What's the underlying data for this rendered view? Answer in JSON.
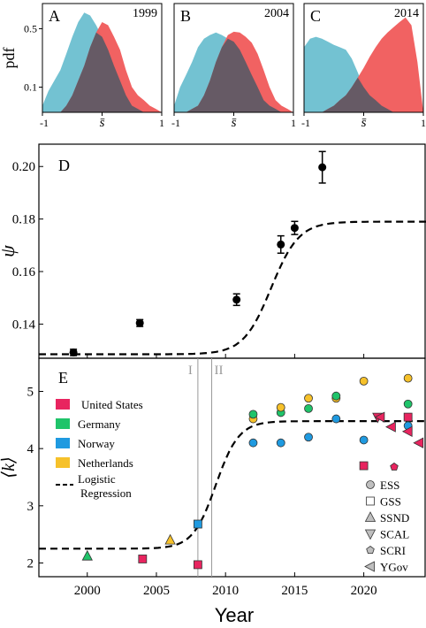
{
  "chart_data": [
    {
      "panel": "A",
      "type": "area",
      "year_label": "1999",
      "ylabel": "pdf",
      "yscale": "log",
      "ytick_labels": [
        "0.5",
        "0.1"
      ],
      "ytick_values": [
        0.5,
        0.1
      ],
      "xtick_labels": [
        "-1",
        "s̄",
        "1"
      ],
      "xtick_values": [
        -1,
        0,
        1
      ],
      "xlim": [
        -1,
        1
      ],
      "ylim": [
        0.05,
        1.0
      ],
      "series": [
        {
          "color": "#6cbfd0",
          "x": [
            -1,
            -0.9,
            -0.8,
            -0.7,
            -0.6,
            -0.5,
            -0.4,
            -0.3,
            -0.2,
            -0.1,
            0.0,
            0.1,
            0.2,
            0.3,
            0.4,
            0.5,
            0.6,
            0.7,
            0.8,
            0.9,
            1.0
          ],
          "y": [
            0.06,
            0.09,
            0.12,
            0.16,
            0.25,
            0.4,
            0.6,
            0.78,
            0.72,
            0.55,
            0.4,
            0.28,
            0.18,
            0.12,
            0.08,
            0.06,
            0.055,
            0.05,
            0.05,
            0.05,
            0.05
          ]
        },
        {
          "color": "#f05a5a",
          "x": [
            -1,
            -0.9,
            -0.8,
            -0.7,
            -0.6,
            -0.5,
            -0.4,
            -0.3,
            -0.2,
            -0.1,
            0.0,
            0.1,
            0.2,
            0.3,
            0.4,
            0.5,
            0.6,
            0.7,
            0.8,
            0.9,
            1.0
          ],
          "y": [
            0.05,
            0.05,
            0.05,
            0.05,
            0.06,
            0.08,
            0.12,
            0.18,
            0.3,
            0.45,
            0.6,
            0.55,
            0.4,
            0.28,
            0.16,
            0.1,
            0.08,
            0.07,
            0.06,
            0.055,
            0.05
          ]
        }
      ]
    },
    {
      "panel": "B",
      "type": "area",
      "year_label": "2004",
      "yscale": "log",
      "xtick_labels": [
        "-1",
        "s̄",
        "1"
      ],
      "xtick_values": [
        -1,
        0,
        1
      ],
      "xlim": [
        -1,
        1
      ],
      "ylim": [
        0.05,
        1.0
      ],
      "series": [
        {
          "color": "#6cbfd0",
          "x": [
            -1,
            -0.9,
            -0.8,
            -0.7,
            -0.6,
            -0.5,
            -0.4,
            -0.3,
            -0.2,
            -0.1,
            0.0,
            0.1,
            0.2,
            0.3,
            0.4,
            0.5,
            0.6,
            0.7,
            0.8,
            0.9,
            1.0
          ],
          "y": [
            0.06,
            0.1,
            0.14,
            0.2,
            0.3,
            0.38,
            0.42,
            0.45,
            0.42,
            0.38,
            0.35,
            0.28,
            0.2,
            0.14,
            0.1,
            0.07,
            0.06,
            0.055,
            0.05,
            0.05,
            0.05
          ]
        },
        {
          "color": "#f05a5a",
          "x": [
            -1,
            -0.9,
            -0.8,
            -0.7,
            -0.6,
            -0.5,
            -0.4,
            -0.3,
            -0.2,
            -0.1,
            0.0,
            0.1,
            0.2,
            0.3,
            0.4,
            0.5,
            0.6,
            0.7,
            0.8,
            0.9,
            1.0
          ],
          "y": [
            0.05,
            0.05,
            0.05,
            0.055,
            0.06,
            0.08,
            0.12,
            0.2,
            0.3,
            0.42,
            0.46,
            0.45,
            0.4,
            0.34,
            0.25,
            0.16,
            0.1,
            0.07,
            0.06,
            0.055,
            0.05
          ]
        }
      ]
    },
    {
      "panel": "C",
      "type": "area",
      "year_label": "2014",
      "yscale": "log",
      "xtick_labels": [
        "-1",
        "s̄",
        "1"
      ],
      "xtick_values": [
        -1,
        0,
        1
      ],
      "xlim": [
        -1,
        1
      ],
      "ylim": [
        0.05,
        1.0
      ],
      "series": [
        {
          "color": "#6cbfd0",
          "x": [
            -1,
            -0.9,
            -0.8,
            -0.7,
            -0.6,
            -0.5,
            -0.4,
            -0.3,
            -0.2,
            -0.1,
            0.0,
            0.1,
            0.2,
            0.3,
            0.4,
            0.5,
            0.6,
            0.7,
            0.8,
            0.9,
            1.0
          ],
          "y": [
            0.3,
            0.38,
            0.4,
            0.38,
            0.35,
            0.32,
            0.3,
            0.28,
            0.22,
            0.15,
            0.1,
            0.08,
            0.07,
            0.06,
            0.055,
            0.05,
            0.05,
            0.05,
            0.05,
            0.05,
            0.05
          ]
        },
        {
          "color": "#f05a5a",
          "x": [
            -1,
            -0.9,
            -0.8,
            -0.7,
            -0.6,
            -0.5,
            -0.4,
            -0.3,
            -0.2,
            -0.1,
            0.0,
            0.1,
            0.2,
            0.3,
            0.4,
            0.5,
            0.6,
            0.7,
            0.8,
            0.9,
            1.0
          ],
          "y": [
            0.05,
            0.05,
            0.05,
            0.05,
            0.055,
            0.06,
            0.07,
            0.08,
            0.1,
            0.13,
            0.17,
            0.23,
            0.3,
            0.38,
            0.45,
            0.52,
            0.6,
            0.68,
            0.55,
            0.2,
            0.05
          ]
        }
      ]
    },
    {
      "panel": "D",
      "type": "scatter",
      "ylabel": "ψ",
      "xlim": [
        1996.5,
        2024.5
      ],
      "ylim": [
        0.127,
        0.2085
      ],
      "ytick_values": [
        0.14,
        0.16,
        0.18,
        0.2
      ],
      "ytick_labels": [
        "0.14",
        "0.16",
        "0.18",
        "0.20"
      ],
      "points": [
        {
          "x": 1999,
          "y": 0.1292,
          "err": 0.0012
        },
        {
          "x": 2003.8,
          "y": 0.1404,
          "err": 0.0013
        },
        {
          "x": 2010.8,
          "y": 0.1493,
          "err": 0.0022
        },
        {
          "x": 2014,
          "y": 0.1703,
          "err": 0.0033
        },
        {
          "x": 2015,
          "y": 0.1766,
          "err": 0.0025
        },
        {
          "x": 2017,
          "y": 0.1997,
          "err": 0.006
        }
      ],
      "fit": {
        "style": "dashed",
        "lower": 0.1285,
        "upper": 0.179,
        "midpoint": 2013.3,
        "rate": 1.0
      }
    },
    {
      "panel": "E",
      "type": "scatter",
      "ylabel": "⟨k⟩",
      "xlabel": "Year",
      "xlim": [
        1996.5,
        2024.5
      ],
      "ylim": [
        1.76,
        5.58
      ],
      "xtick_values": [
        2000,
        2005,
        2010,
        2015,
        2020
      ],
      "xtick_labels": [
        "2000",
        "2005",
        "2010",
        "2015",
        "2020"
      ],
      "ytick_values": [
        2,
        3,
        4,
        5
      ],
      "ytick_labels": [
        "2",
        "3",
        "4",
        "5"
      ],
      "vlines": [
        {
          "x": 2008,
          "label": "I"
        },
        {
          "x": 2009,
          "label": "II"
        }
      ],
      "legend_colors": [
        {
          "label": "United States",
          "color": "#e8245f"
        },
        {
          "label": "Germany",
          "color": "#1fc46a"
        },
        {
          "label": "Norway",
          "color": "#1f9ae0"
        },
        {
          "label": "Netherlands",
          "color": "#f6c12a"
        }
      ],
      "legend_fit_label": "Logistic",
      "legend_fit_label2": "Regression",
      "legend_markers": [
        {
          "label": "ESS",
          "marker": "circle"
        },
        {
          "label": "GSS",
          "marker": "square"
        },
        {
          "label": "SSND",
          "marker": "triangle-up"
        },
        {
          "label": "SCAL",
          "marker": "triangle-down"
        },
        {
          "label": "SCRI",
          "marker": "pentagon"
        },
        {
          "label": "YGov",
          "marker": "triangle-left"
        }
      ],
      "points": [
        {
          "x": 2000,
          "y": 2.12,
          "marker": "triangle-up",
          "color": "#1fc46a"
        },
        {
          "x": 2004,
          "y": 2.07,
          "marker": "square",
          "color": "#e8245f"
        },
        {
          "x": 2006,
          "y": 2.4,
          "marker": "triangle-up",
          "color": "#f6c12a"
        },
        {
          "x": 2008,
          "y": 1.97,
          "marker": "square",
          "color": "#e8245f"
        },
        {
          "x": 2008,
          "y": 2.68,
          "marker": "square",
          "color": "#1f9ae0"
        },
        {
          "x": 2012,
          "y": 4.1,
          "marker": "circle",
          "color": "#1f9ae0"
        },
        {
          "x": 2012,
          "y": 4.52,
          "marker": "circle",
          "color": "#f6c12a"
        },
        {
          "x": 2012,
          "y": 4.6,
          "marker": "circle",
          "color": "#1fc46a"
        },
        {
          "x": 2014,
          "y": 4.1,
          "marker": "circle",
          "color": "#1f9ae0"
        },
        {
          "x": 2014,
          "y": 4.63,
          "marker": "circle",
          "color": "#1fc46a"
        },
        {
          "x": 2014,
          "y": 4.72,
          "marker": "circle",
          "color": "#f6c12a"
        },
        {
          "x": 2016,
          "y": 4.2,
          "marker": "circle",
          "color": "#1f9ae0"
        },
        {
          "x": 2016,
          "y": 4.7,
          "marker": "circle",
          "color": "#1fc46a"
        },
        {
          "x": 2016,
          "y": 4.88,
          "marker": "circle",
          "color": "#f6c12a"
        },
        {
          "x": 2018,
          "y": 4.52,
          "marker": "circle",
          "color": "#1f9ae0"
        },
        {
          "x": 2018,
          "y": 4.88,
          "marker": "circle",
          "color": "#f6c12a"
        },
        {
          "x": 2018,
          "y": 4.92,
          "marker": "circle",
          "color": "#1fc46a"
        },
        {
          "x": 2020,
          "y": 4.15,
          "marker": "circle",
          "color": "#1f9ae0"
        },
        {
          "x": 2020,
          "y": 5.18,
          "marker": "circle",
          "color": "#f6c12a"
        },
        {
          "x": 2020,
          "y": 3.7,
          "marker": "square",
          "color": "#e8245f"
        },
        {
          "x": 2021,
          "y": 4.55,
          "marker": "triangle-down",
          "color": "#e8245f"
        },
        {
          "x": 2021.2,
          "y": 4.55,
          "marker": "triangle-left",
          "color": "#e8245f"
        },
        {
          "x": 2022,
          "y": 4.38,
          "marker": "triangle-left",
          "color": "#e8245f"
        },
        {
          "x": 2022.2,
          "y": 3.68,
          "marker": "pentagon",
          "color": "#e8245f"
        },
        {
          "x": 2023.2,
          "y": 4.55,
          "marker": "square",
          "color": "#e8245f"
        },
        {
          "x": 2023.2,
          "y": 4.4,
          "marker": "circle",
          "color": "#1f9ae0"
        },
        {
          "x": 2023.2,
          "y": 4.78,
          "marker": "circle",
          "color": "#1fc46a"
        },
        {
          "x": 2023.2,
          "y": 5.23,
          "marker": "circle",
          "color": "#f6c12a"
        },
        {
          "x": 2023.2,
          "y": 4.3,
          "marker": "triangle-left",
          "color": "#e8245f"
        },
        {
          "x": 2024,
          "y": 4.1,
          "marker": "triangle-left",
          "color": "#e8245f"
        }
      ],
      "fit": {
        "style": "dashed",
        "lower": 2.25,
        "upper": 4.48,
        "midpoint": 2009.3,
        "rate": 1.2
      }
    }
  ]
}
